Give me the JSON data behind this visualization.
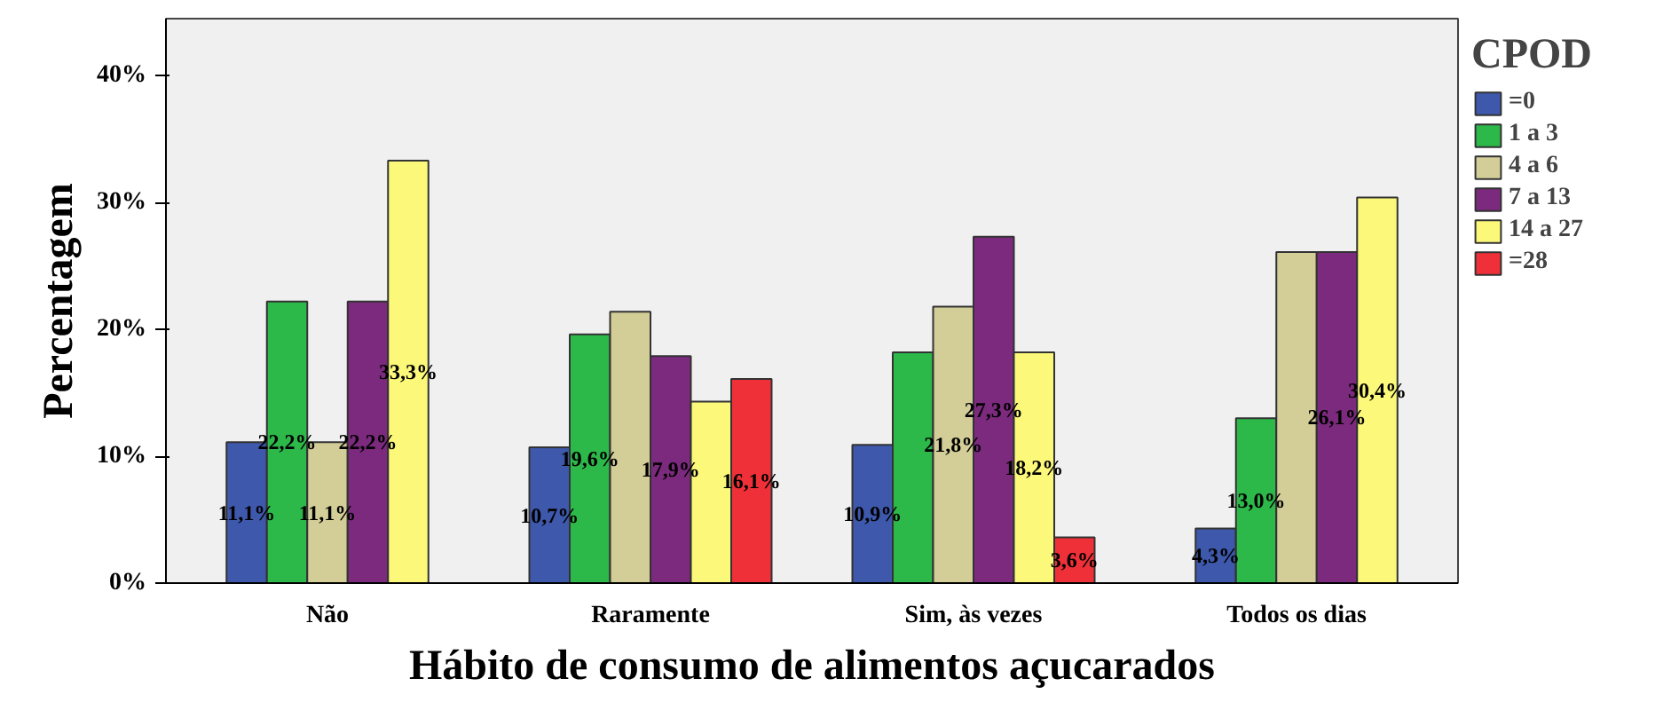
{
  "chart_data": {
    "type": "bar",
    "xlabel": "Hábito de consumo de alimentos açucarados",
    "ylabel": "Percentagem",
    "legend_title": "CPOD",
    "categories": [
      "Não",
      "Raramente",
      "Sim, às vezes",
      "Todos os dias"
    ],
    "series": [
      {
        "name": "=0",
        "color": "#3e58ac",
        "values": [
          11.1,
          10.7,
          10.9,
          4.3
        ],
        "value_labels": [
          "11,1%",
          "10,7%",
          "10,9%",
          "4,3%"
        ]
      },
      {
        "name": "1 a 3",
        "color": "#2db84a",
        "values": [
          22.2,
          19.6,
          18.2,
          13.0
        ],
        "value_labels": [
          "22,2%",
          "19,6%",
          null,
          "13,0%"
        ]
      },
      {
        "name": "4 a 6",
        "color": "#d3ce97",
        "values": [
          11.1,
          21.4,
          21.8,
          26.1
        ],
        "value_labels": [
          "11,1%",
          null,
          "21,8%",
          null
        ]
      },
      {
        "name": "7 a 13",
        "color": "#7b2a7d",
        "values": [
          22.2,
          17.9,
          27.3,
          26.1
        ],
        "value_labels": [
          "22,2%",
          "17,9%",
          "27,3%",
          "26,1%"
        ]
      },
      {
        "name": "14 a 27",
        "color": "#fbf87a",
        "values": [
          33.3,
          14.3,
          18.2,
          30.4
        ],
        "value_labels": [
          "33,3%",
          null,
          "18,2%",
          "30,4%"
        ]
      },
      {
        "name": "=28",
        "color": "#ef3038",
        "values": [
          null,
          16.1,
          3.6,
          null
        ],
        "value_labels": [
          null,
          "16,1%",
          "3,6%",
          null
        ]
      }
    ],
    "ylim": [
      0,
      44.5
    ],
    "yticks": [
      {
        "value": 0,
        "label": "0%"
      },
      {
        "value": 10,
        "label": "10%"
      },
      {
        "value": 20,
        "label": "20%"
      },
      {
        "value": 30,
        "label": "30%"
      },
      {
        "value": 40,
        "label": "40%"
      }
    ],
    "grid": false,
    "legend": "right"
  }
}
